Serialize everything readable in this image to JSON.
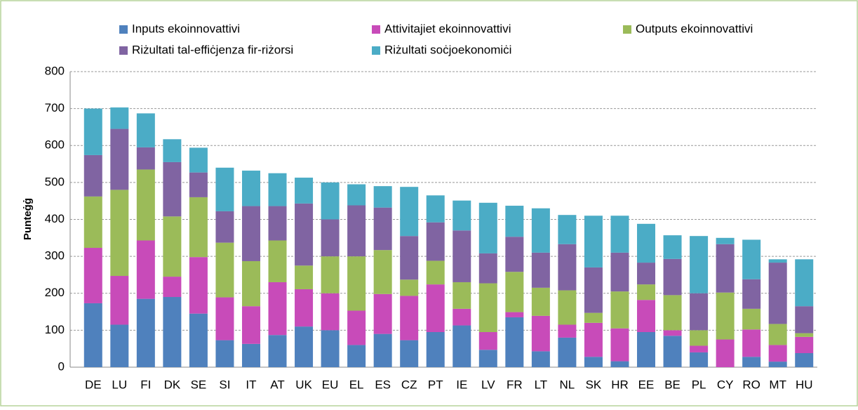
{
  "chart_data": {
    "type": "stacked_bar",
    "y_label": "Punteġġ",
    "categories": [
      "DE",
      "LU",
      "FI",
      "DK",
      "SE",
      "SI",
      "IT",
      "AT",
      "UK",
      "EU",
      "EL",
      "ES",
      "CZ",
      "PT",
      "IE",
      "LV",
      "FR",
      "LT",
      "NL",
      "SK",
      "HR",
      "EE",
      "BE",
      "PL",
      "CY",
      "RO",
      "MT",
      "HU"
    ],
    "series": [
      {
        "name": "Inputs ekoinnovattivi",
        "color": "#4f81bd",
        "values": [
          173,
          115,
          185,
          190,
          145,
          73,
          63,
          87,
          110,
          100,
          60,
          90,
          73,
          95,
          113,
          47,
          135,
          43,
          80,
          28,
          16,
          95,
          85,
          40,
          0,
          28,
          15,
          38
        ]
      },
      {
        "name": "Attivitajiet ekoinnovattivi",
        "color": "#c84bb9",
        "values": [
          150,
          132,
          158,
          55,
          153,
          116,
          102,
          143,
          101,
          100,
          93,
          108,
          120,
          129,
          45,
          48,
          14,
          96,
          35,
          92,
          89,
          87,
          15,
          18,
          75,
          74,
          45,
          44
        ]
      },
      {
        "name": "Outputs ekoinnovattivi",
        "color": "#9bbb59",
        "values": [
          139,
          233,
          192,
          163,
          162,
          148,
          122,
          113,
          64,
          100,
          147,
          119,
          44,
          64,
          72,
          132,
          109,
          76,
          93,
          27,
          100,
          42,
          95,
          42,
          127,
          56,
          57,
          10
        ]
      },
      {
        "name": "Riżultati tal-effiċjenza fir-riżorsi",
        "color": "#8064a2",
        "values": [
          112,
          165,
          60,
          147,
          67,
          85,
          149,
          93,
          168,
          100,
          138,
          115,
          118,
          104,
          140,
          81,
          95,
          95,
          125,
          123,
          105,
          59,
          98,
          100,
          131,
          80,
          166,
          73
        ]
      },
      {
        "name": "Riżultati soċjoekonomiċi",
        "color": "#4bacc6",
        "values": [
          126,
          58,
          92,
          62,
          67,
          118,
          96,
          89,
          70,
          100,
          57,
          58,
          133,
          73,
          81,
          137,
          84,
          120,
          79,
          140,
          100,
          105,
          64,
          155,
          17,
          107,
          9,
          127
        ]
      }
    ],
    "ylim": [
      0,
      800
    ],
    "yticks": [
      0,
      100,
      200,
      300,
      400,
      500,
      600,
      700,
      800
    ],
    "grid": true
  }
}
